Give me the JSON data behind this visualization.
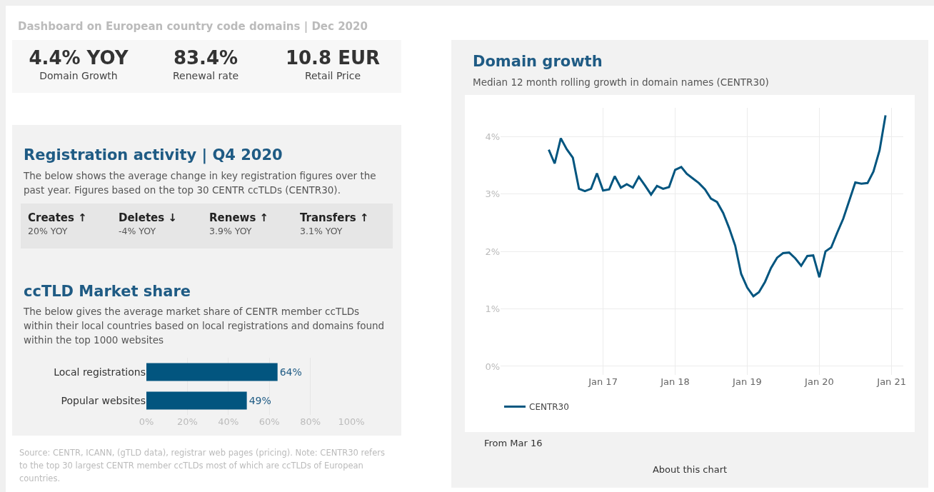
{
  "chart_data": [
    {
      "type": "other",
      "title": "Dashboard on European country code domains | Dec 2020",
      "annotations": [
        "4.4% YOY",
        "Domain Growth",
        "83.4%",
        "Renewal rate",
        "10.8 EUR",
        "Retail Price"
      ]
    },
    {
      "type": "other",
      "title": "Registration activity | Q4 2020",
      "subtitle": "The below shows the average change in key registration figures over the past year.  Figures based on the top 30 CENTR ccTLDs (CENTR30).",
      "annotations": [
        "Creates ↑",
        "20% YOY",
        "Deletes ↓",
        "-4% YOY",
        "Renews ↑",
        "3.9% YOY",
        "Transfers ↑",
        "3.1% YOY"
      ]
    },
    {
      "type": "bar",
      "orientation": "horizontal",
      "title": "ccTLD Market share",
      "subtitle": "The below gives the average market share of CENTR member ccTLDs within their local countries based on local registrations and domains found within the top 1000 websites",
      "categories": [
        "Local registrations",
        "Popular websites"
      ],
      "values": [
        64,
        49
      ],
      "value_labels": [
        "64%",
        "49%"
      ],
      "color": "#02557f",
      "xlim": [
        0,
        100
      ],
      "xticks": [
        {
          "value": 0,
          "label": "0%"
        },
        {
          "value": 20,
          "label": "20%"
        },
        {
          "value": 40,
          "label": "40%"
        },
        {
          "value": 60,
          "label": "60%"
        },
        {
          "value": 80,
          "label": "80%"
        },
        {
          "value": 100,
          "label": "100%"
        }
      ],
      "grid": "x",
      "annotations": [
        "Source: CENTR, ICANN, (gTLD data), registrar web pages (pricing).  Note:  CENTR30 refers to the top 30 largest CENTR member ccTLDs most of which are ccTLDs of European countries."
      ]
    },
    {
      "type": "line",
      "title": "Domain growth",
      "subtitle": "Median 12 month rolling growth in domain names (CENTR30)",
      "x": [
        "2016-04",
        "2016-05",
        "2016-06",
        "2016-07",
        "2016-08",
        "2016-09",
        "2016-10",
        "2016-11",
        "2016-12",
        "2017-01",
        "2017-02",
        "2017-03",
        "2017-04",
        "2017-05",
        "2017-06",
        "2017-07",
        "2017-08",
        "2017-09",
        "2017-10",
        "2017-11",
        "2017-12",
        "2018-01",
        "2018-02",
        "2018-03",
        "2018-04",
        "2018-05",
        "2018-06",
        "2018-07",
        "2018-08",
        "2018-09",
        "2018-10",
        "2018-11",
        "2018-12",
        "2019-01",
        "2019-02",
        "2019-03",
        "2019-04",
        "2019-05",
        "2019-06",
        "2019-07",
        "2019-08",
        "2019-09",
        "2019-10",
        "2019-11",
        "2019-12",
        "2020-01",
        "2020-02",
        "2020-03",
        "2020-04",
        "2020-05",
        "2020-06",
        "2020-07",
        "2020-08",
        "2020-09",
        "2020-10",
        "2020-11",
        "2020-12"
      ],
      "series": [
        {
          "name": "CENTR30",
          "color": "#02557f",
          "values": [
            3.77,
            3.53,
            3.97,
            3.78,
            3.63,
            3.09,
            3.05,
            3.09,
            3.36,
            3.06,
            3.08,
            3.31,
            3.11,
            3.17,
            3.11,
            3.3,
            3.15,
            2.99,
            3.14,
            3.09,
            3.12,
            3.42,
            3.47,
            3.35,
            3.27,
            3.19,
            3.08,
            2.92,
            2.86,
            2.67,
            2.41,
            2.1,
            1.61,
            1.37,
            1.22,
            1.29,
            1.47,
            1.71,
            1.89,
            1.97,
            1.98,
            1.88,
            1.75,
            1.92,
            1.93,
            1.55,
            2.0,
            2.07,
            2.33,
            2.57,
            2.89,
            3.2,
            3.18,
            3.19,
            3.39,
            3.76,
            4.37
          ]
        }
      ],
      "xlim": [
        "2015-08",
        "2021-03"
      ],
      "xticks": [
        {
          "value": "2017-01",
          "label": "Jan 17"
        },
        {
          "value": "2018-01",
          "label": "Jan 18"
        },
        {
          "value": "2019-01",
          "label": "Jan 19"
        },
        {
          "value": "2020-01",
          "label": "Jan 20"
        },
        {
          "value": "2021-01",
          "label": "Jan 21"
        }
      ],
      "ylim": [
        -0.15,
        4.5
      ],
      "yticks": [
        {
          "value": 0,
          "label": "0%"
        },
        {
          "value": 1,
          "label": "1%"
        },
        {
          "value": 2,
          "label": "2%"
        },
        {
          "value": 3,
          "label": "3%"
        },
        {
          "value": 4,
          "label": "4%"
        }
      ],
      "grid": true,
      "legend": "bottom left",
      "marker": "none",
      "line_style": "solid",
      "annotations": [
        "From Mar 16",
        "About this chart"
      ]
    }
  ]
}
